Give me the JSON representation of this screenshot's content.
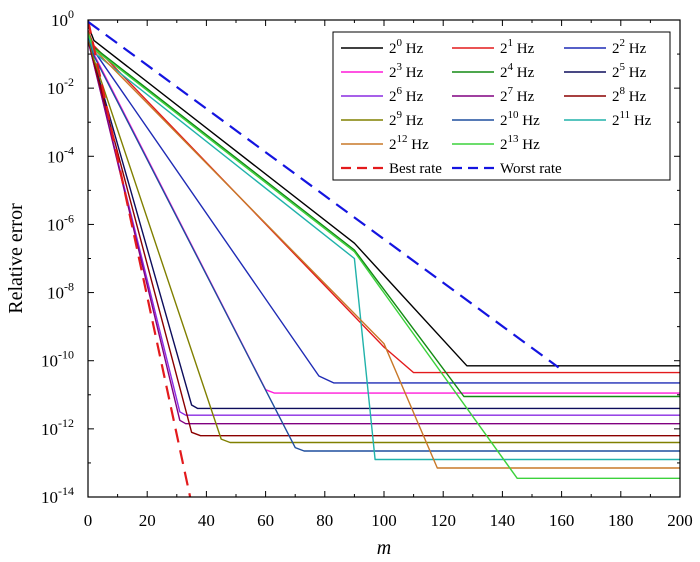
{
  "chart_data": {
    "type": "line",
    "title": "",
    "xlabel": "m",
    "ylabel": "Relative error",
    "xlim": [
      0,
      200
    ],
    "ylim_log10": [
      -14,
      0
    ],
    "y_scale": "log",
    "grid": false,
    "legend_position": "top-right",
    "x_ticks": [
      0,
      20,
      40,
      60,
      80,
      100,
      120,
      140,
      160,
      180,
      200
    ],
    "x_tick_labels": [
      "0",
      "20",
      "40",
      "60",
      "80",
      "100",
      "120",
      "140",
      "160",
      "180",
      "200"
    ],
    "y_ticks": [
      {
        "base": "10",
        "exp": "0"
      },
      {
        "base": "10",
        "exp": "-2"
      },
      {
        "base": "10",
        "exp": "-4"
      },
      {
        "base": "10",
        "exp": "-6"
      },
      {
        "base": "10",
        "exp": "-8"
      },
      {
        "base": "10",
        "exp": "-10"
      },
      {
        "base": "10",
        "exp": "-12"
      },
      {
        "base": "10",
        "exp": "-14"
      }
    ],
    "series": [
      {
        "name": "2^0 Hz",
        "base": "2",
        "exp": "0",
        "unit": "Hz",
        "color": "#000000",
        "dash": "solid",
        "plateau_log10": -10.15,
        "points": [
          [
            0,
            -0.15
          ],
          [
            2,
            -0.6
          ],
          [
            90,
            -6.55
          ],
          [
            128,
            -10.15
          ],
          [
            200,
            -10.15
          ]
        ]
      },
      {
        "name": "2^1 Hz",
        "base": "2",
        "exp": "1",
        "unit": "Hz",
        "color": "#e31a1c",
        "dash": "solid",
        "plateau_log10": -10.35,
        "points": [
          [
            0,
            -0.3
          ],
          [
            2,
            -0.75
          ],
          [
            100,
            -9.6
          ],
          [
            110,
            -10.35
          ],
          [
            200,
            -10.35
          ]
        ]
      },
      {
        "name": "2^2 Hz",
        "base": "2",
        "exp": "2",
        "unit": "Hz",
        "color": "#1f2bb5",
        "dash": "solid",
        "plateau_log10": -10.65,
        "points": [
          [
            0,
            -0.4
          ],
          [
            2,
            -0.9
          ],
          [
            78,
            -10.45
          ],
          [
            83,
            -10.65
          ],
          [
            200,
            -10.65
          ]
        ]
      },
      {
        "name": "2^3 Hz",
        "base": "2",
        "exp": "3",
        "unit": "Hz",
        "color": "#ff1ad9",
        "dash": "solid",
        "plateau_log10": -10.95,
        "points": [
          [
            0,
            -0.45
          ],
          [
            2,
            -1.0
          ],
          [
            60,
            -10.85
          ],
          [
            63,
            -10.95
          ],
          [
            200,
            -10.95
          ]
        ]
      },
      {
        "name": "2^4 Hz",
        "base": "2",
        "exp": "4",
        "unit": "Hz",
        "color": "#138a13",
        "dash": "solid",
        "plateau_log10": -11.05,
        "points": [
          [
            0,
            -0.35
          ],
          [
            2,
            -0.8
          ],
          [
            90,
            -6.75
          ],
          [
            127,
            -11.05
          ],
          [
            200,
            -11.05
          ]
        ]
      },
      {
        "name": "2^5 Hz",
        "base": "2",
        "exp": "5",
        "unit": "Hz",
        "color": "#0d0d5c",
        "dash": "solid",
        "plateau_log10": -11.4,
        "points": [
          [
            0,
            -0.55
          ],
          [
            2,
            -1.2
          ],
          [
            35,
            -11.3
          ],
          [
            37,
            -11.4
          ],
          [
            200,
            -11.4
          ]
        ]
      },
      {
        "name": "2^6 Hz",
        "base": "2",
        "exp": "6",
        "unit": "Hz",
        "color": "#8a2be2",
        "dash": "solid",
        "plateau_log10": -11.6,
        "points": [
          [
            0,
            -0.6
          ],
          [
            2,
            -1.3
          ],
          [
            31,
            -11.5
          ],
          [
            33,
            -11.6
          ],
          [
            200,
            -11.6
          ]
        ]
      },
      {
        "name": "2^7 Hz",
        "base": "2",
        "exp": "7",
        "unit": "Hz",
        "color": "#800080",
        "dash": "solid",
        "plateau_log10": -11.85,
        "points": [
          [
            0,
            -0.6
          ],
          [
            2,
            -1.3
          ],
          [
            31,
            -11.75
          ],
          [
            33,
            -11.85
          ],
          [
            200,
            -11.85
          ]
        ]
      },
      {
        "name": "2^8 Hz",
        "base": "2",
        "exp": "8",
        "unit": "Hz",
        "color": "#8b0000",
        "dash": "solid",
        "plateau_log10": -12.2,
        "points": [
          [
            0,
            -0.55
          ],
          [
            2,
            -1.25
          ],
          [
            35,
            -12.1
          ],
          [
            38,
            -12.2
          ],
          [
            200,
            -12.2
          ]
        ]
      },
      {
        "name": "2^9 Hz",
        "base": "2",
        "exp": "9",
        "unit": "Hz",
        "color": "#808000",
        "dash": "solid",
        "plateau_log10": -12.4,
        "points": [
          [
            0,
            -0.5
          ],
          [
            2,
            -1.15
          ],
          [
            45,
            -12.3
          ],
          [
            48,
            -12.4
          ],
          [
            200,
            -12.4
          ]
        ]
      },
      {
        "name": "2^10 Hz",
        "base": "2",
        "exp": "10",
        "unit": "Hz",
        "color": "#1f4e9e",
        "dash": "solid",
        "plateau_log10": -12.65,
        "points": [
          [
            0,
            -0.45
          ],
          [
            2,
            -1.05
          ],
          [
            70,
            -12.55
          ],
          [
            73,
            -12.65
          ],
          [
            200,
            -12.65
          ]
        ]
      },
      {
        "name": "2^11 Hz",
        "base": "2",
        "exp": "11",
        "unit": "Hz",
        "color": "#20b2aa",
        "dash": "solid",
        "plateau_log10": -12.9,
        "points": [
          [
            0,
            -0.4
          ],
          [
            2,
            -0.95
          ],
          [
            90,
            -7.0
          ],
          [
            97,
            -12.9
          ],
          [
            200,
            -12.9
          ]
        ]
      },
      {
        "name": "2^12 Hz",
        "base": "2",
        "exp": "12",
        "unit": "Hz",
        "color": "#c87828",
        "dash": "solid",
        "plateau_log10": -13.15,
        "points": [
          [
            0,
            -0.35
          ],
          [
            2,
            -0.85
          ],
          [
            100,
            -9.5
          ],
          [
            118,
            -13.15
          ],
          [
            200,
            -13.15
          ]
        ]
      },
      {
        "name": "2^13 Hz",
        "base": "2",
        "exp": "13",
        "unit": "Hz",
        "color": "#3cd23c",
        "dash": "solid",
        "plateau_log10": -13.45,
        "points": [
          [
            0,
            -0.4
          ],
          [
            2,
            -0.85
          ],
          [
            90,
            -6.8
          ],
          [
            145,
            -13.45
          ],
          [
            200,
            -13.45
          ]
        ]
      },
      {
        "name": "Best rate",
        "base": "",
        "exp": "",
        "unit": "",
        "color": "#e31a1c",
        "dash": "dashed",
        "points": [
          [
            0,
            0.0
          ],
          [
            35,
            -14.2
          ]
        ]
      },
      {
        "name": "Worst rate",
        "base": "",
        "exp": "",
        "unit": "",
        "color": "#1414e0",
        "dash": "dashed",
        "points": [
          [
            0,
            -0.05
          ],
          [
            159,
            -10.2
          ]
        ]
      }
    ]
  }
}
